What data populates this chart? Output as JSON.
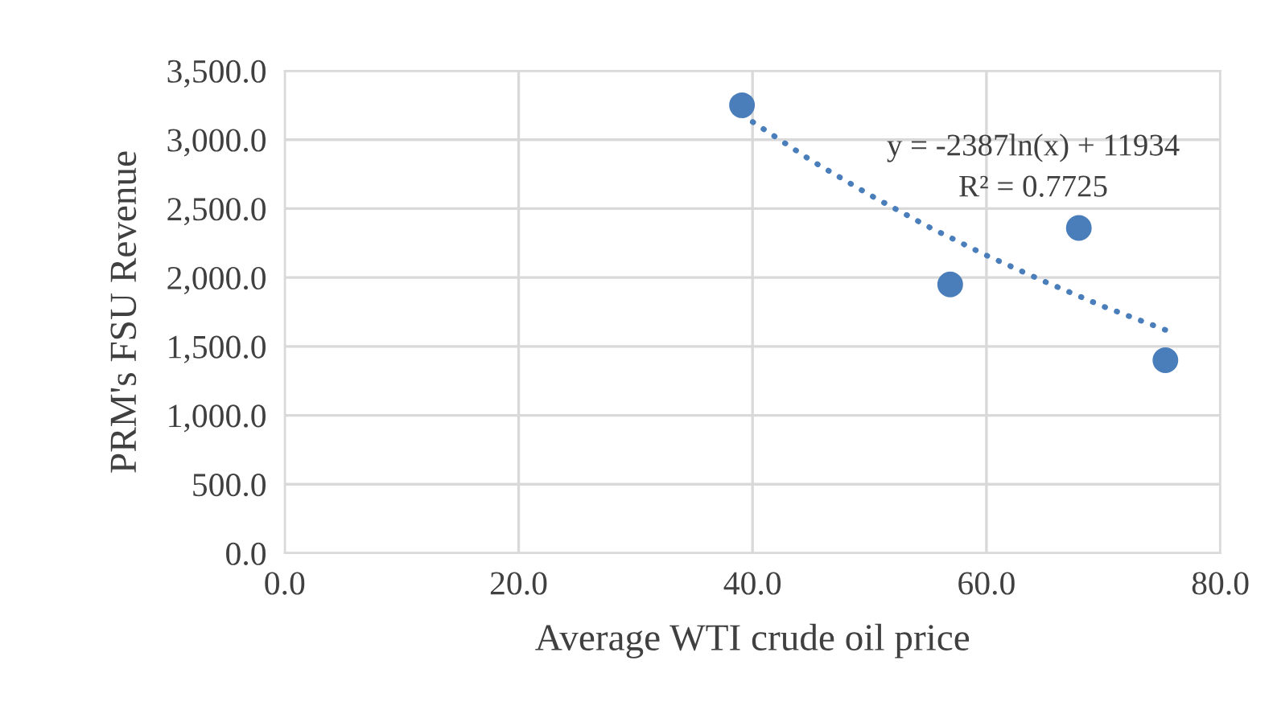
{
  "chart_data": {
    "type": "scatter",
    "xlabel": "Average WTI crude oil price",
    "ylabel": "PRM's FSU Revenue",
    "xlim": [
      0,
      80
    ],
    "xticks": [
      {
        "value": 0,
        "label": "0.0"
      },
      {
        "value": 20,
        "label": "20.0"
      },
      {
        "value": 40,
        "label": "40.0"
      },
      {
        "value": 60,
        "label": "60.0"
      },
      {
        "value": 80,
        "label": "80.0"
      }
    ],
    "ylim": [
      0,
      3500
    ],
    "yticks": [
      {
        "value": 0,
        "label": "0.0"
      },
      {
        "value": 500,
        "label": "500.0"
      },
      {
        "value": 1000,
        "label": "1,000.0"
      },
      {
        "value": 1500,
        "label": "1,500.0"
      },
      {
        "value": 2000,
        "label": "2,000.0"
      },
      {
        "value": 2500,
        "label": "2,500.0"
      },
      {
        "value": 3000,
        "label": "3,000.0"
      },
      {
        "value": 3500,
        "label": "3,500.0"
      }
    ],
    "grid": true,
    "marker": "circle",
    "series": [
      {
        "color": "#4a7ebb",
        "x": [
          39.1,
          56.9,
          67.9,
          75.3
        ],
        "values": [
          3250,
          1950,
          2360,
          1400
        ]
      },
      {
        "type": "line",
        "color": "#4a7ebb",
        "line_style": "dotted",
        "marker": "none",
        "x": [
          39.1,
          45,
          50,
          55,
          60,
          65,
          70,
          75.3
        ],
        "values": [
          3180,
          2850,
          2600,
          2370,
          2160,
          1970,
          1790,
          1620
        ]
      }
    ],
    "annotations": [
      "y = -2387ln(x) + 11934",
      "R² = 0.7725"
    ]
  }
}
